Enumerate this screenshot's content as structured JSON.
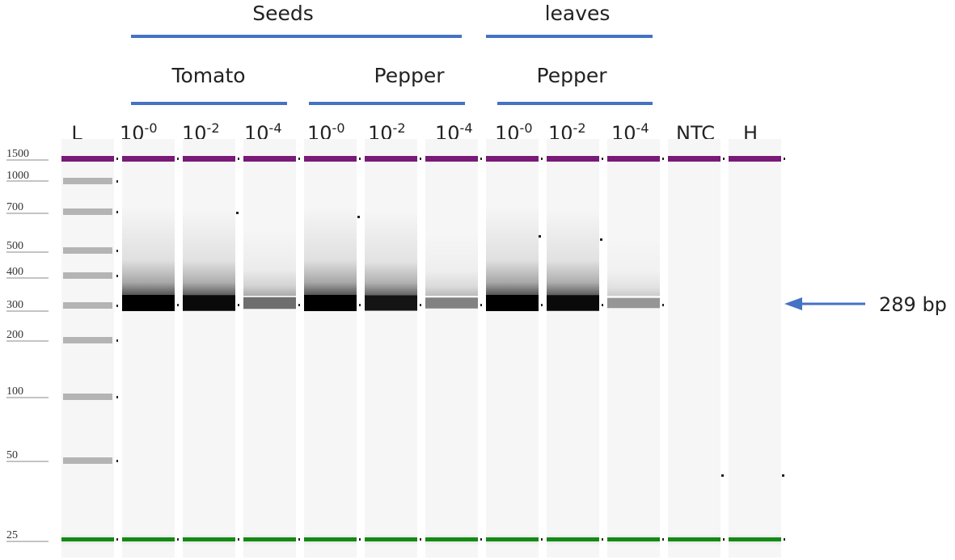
{
  "groups": [
    {
      "label": "Seeds",
      "key": "seeds"
    },
    {
      "label": "leaves",
      "key": "leaves"
    }
  ],
  "subgroups": [
    {
      "label": "Tomato",
      "key": "tomato"
    },
    {
      "label": "Pepper",
      "key": "pepper_seeds"
    },
    {
      "label": "Pepper",
      "key": "pepper_leaves"
    }
  ],
  "lanes": [
    {
      "label": "L",
      "base": "",
      "exp": ""
    },
    {
      "label": "",
      "base": "10",
      "exp": "-0"
    },
    {
      "label": "",
      "base": "10",
      "exp": "-2"
    },
    {
      "label": "",
      "base": "10",
      "exp": "-4"
    },
    {
      "label": "",
      "base": "10",
      "exp": "-0"
    },
    {
      "label": "",
      "base": "10",
      "exp": "-2"
    },
    {
      "label": "",
      "base": "10",
      "exp": "-4"
    },
    {
      "label": "",
      "base": "10",
      "exp": "-0"
    },
    {
      "label": "",
      "base": "10",
      "exp": "-2"
    },
    {
      "label": "",
      "base": "10",
      "exp": "-4"
    },
    {
      "label": "NTC",
      "base": "",
      "exp": ""
    },
    {
      "label": "H",
      "base": "",
      "exp": ""
    }
  ],
  "ladder": [
    "1500",
    "1000",
    "700",
    "500",
    "400",
    "300",
    "200",
    "100",
    "50",
    "25"
  ],
  "target_band": {
    "label": "289 bp"
  },
  "band_intensity": {
    "tomato_10-0": 1.0,
    "tomato_10-2": 0.95,
    "tomato_10-4": 0.45,
    "pepper_seeds_10-0": 1.0,
    "pepper_seeds_10-2": 0.9,
    "pepper_seeds_10-4": 0.35,
    "pepper_leaves_10-0": 1.0,
    "pepper_leaves_10-2": 0.95,
    "pepper_leaves_10-4": 0.25,
    "NTC": 0,
    "H": 0
  },
  "colors": {
    "marker_upper": "#7a1a78",
    "marker_lower": "#138a13",
    "bracket": "#4472c4",
    "arrow": "#4472c4"
  }
}
